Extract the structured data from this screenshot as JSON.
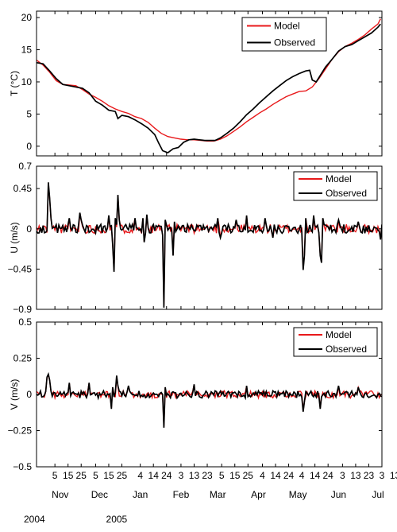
{
  "chart_data": [
    {
      "type": "line",
      "ylabel": "T (°C)",
      "ylim": [
        -1.5,
        21
      ],
      "yticks": [
        0,
        5,
        10,
        15,
        20
      ],
      "ytick_labels": [
        "0",
        "5",
        "10",
        "15",
        "20"
      ],
      "legend": {
        "position": "top-right",
        "entries": [
          "Model",
          "Observed"
        ]
      },
      "series": [
        {
          "name": "Model",
          "color": "#e8191b",
          "points": [
            [
              0,
              13.4
            ],
            [
              5,
              12.6
            ],
            [
              10,
              11.5
            ],
            [
              15,
              10.2
            ],
            [
              20,
              9.6
            ],
            [
              25,
              9.5
            ],
            [
              30,
              9.4
            ],
            [
              35,
              8.8
            ],
            [
              40,
              8.1
            ],
            [
              45,
              7.6
            ],
            [
              50,
              7.0
            ],
            [
              55,
              6.3
            ],
            [
              60,
              5.8
            ],
            [
              65,
              5.4
            ],
            [
              70,
              5.1
            ],
            [
              75,
              4.6
            ],
            [
              80,
              4.3
            ],
            [
              85,
              3.7
            ],
            [
              90,
              2.8
            ],
            [
              95,
              2.0
            ],
            [
              100,
              1.5
            ],
            [
              105,
              1.3
            ],
            [
              110,
              1.1
            ],
            [
              115,
              1.0
            ],
            [
              120,
              1.0
            ],
            [
              125,
              0.9
            ],
            [
              130,
              0.8
            ],
            [
              135,
              0.8
            ],
            [
              140,
              1.1
            ],
            [
              145,
              1.6
            ],
            [
              150,
              2.3
            ],
            [
              155,
              3.0
            ],
            [
              160,
              3.8
            ],
            [
              165,
              4.5
            ],
            [
              170,
              5.2
            ],
            [
              175,
              5.8
            ],
            [
              180,
              6.5
            ],
            [
              185,
              7.1
            ],
            [
              190,
              7.7
            ],
            [
              195,
              8.1
            ],
            [
              200,
              8.5
            ],
            [
              205,
              8.6
            ],
            [
              210,
              9.2
            ],
            [
              215,
              10.5
            ],
            [
              220,
              12.0
            ],
            [
              225,
              13.5
            ],
            [
              230,
              14.7
            ],
            [
              235,
              15.5
            ],
            [
              240,
              16.0
            ],
            [
              245,
              16.6
            ],
            [
              250,
              17.3
            ],
            [
              255,
              18.2
            ],
            [
              260,
              19.0
            ],
            [
              262,
              19.8
            ]
          ]
        },
        {
          "name": "Observed",
          "color": "#000000",
          "points": [
            [
              0,
              13.0
            ],
            [
              5,
              12.8
            ],
            [
              10,
              11.7
            ],
            [
              15,
              10.5
            ],
            [
              20,
              9.6
            ],
            [
              25,
              9.4
            ],
            [
              30,
              9.2
            ],
            [
              35,
              9.0
            ],
            [
              40,
              8.3
            ],
            [
              45,
              7.0
            ],
            [
              50,
              6.4
            ],
            [
              55,
              5.6
            ],
            [
              60,
              5.4
            ],
            [
              62,
              4.3
            ],
            [
              65,
              4.8
            ],
            [
              70,
              4.6
            ],
            [
              75,
              4.1
            ],
            [
              80,
              3.5
            ],
            [
              85,
              2.8
            ],
            [
              90,
              1.8
            ],
            [
              93,
              0.5
            ],
            [
              96,
              -0.7
            ],
            [
              100,
              -1.0
            ],
            [
              104,
              -0.4
            ],
            [
              108,
              -0.2
            ],
            [
              112,
              0.6
            ],
            [
              116,
              1.0
            ],
            [
              120,
              1.1
            ],
            [
              124,
              1.0
            ],
            [
              128,
              0.9
            ],
            [
              132,
              0.9
            ],
            [
              136,
              0.9
            ],
            [
              140,
              1.3
            ],
            [
              145,
              2.0
            ],
            [
              150,
              2.8
            ],
            [
              155,
              3.8
            ],
            [
              160,
              4.9
            ],
            [
              165,
              5.8
            ],
            [
              170,
              6.8
            ],
            [
              175,
              7.7
            ],
            [
              180,
              8.6
            ],
            [
              185,
              9.4
            ],
            [
              190,
              10.2
            ],
            [
              195,
              10.8
            ],
            [
              200,
              11.3
            ],
            [
              205,
              11.7
            ],
            [
              208,
              11.8
            ],
            [
              210,
              10.3
            ],
            [
              213,
              10.0
            ],
            [
              216,
              11.0
            ],
            [
              220,
              12.3
            ],
            [
              225,
              13.5
            ],
            [
              230,
              14.8
            ],
            [
              235,
              15.5
            ],
            [
              240,
              15.8
            ],
            [
              245,
              16.4
            ],
            [
              250,
              17.0
            ],
            [
              255,
              17.6
            ],
            [
              260,
              18.5
            ],
            [
              262,
              19.0
            ]
          ]
        }
      ]
    },
    {
      "type": "line",
      "ylabel": "U (m/s)",
      "ylim": [
        -0.9,
        0.7
      ],
      "yticks": [
        -0.9,
        -0.45,
        0,
        0.45,
        0.7
      ],
      "ytick_labels": [
        "−0.9",
        "−0.45",
        "0",
        "0.45",
        "0.7"
      ],
      "legend": {
        "position": "top-right",
        "entries": [
          "Model",
          "Observed"
        ]
      },
      "noise_amplitude": 0.05,
      "baseline_seed": 11,
      "spikes": [
        [
          9,
          0.52
        ],
        [
          10,
          0.35
        ],
        [
          11,
          0.12
        ],
        [
          25,
          0.12
        ],
        [
          33,
          0.18
        ],
        [
          34,
          0.1
        ],
        [
          55,
          0.15
        ],
        [
          58,
          -0.18
        ],
        [
          59,
          -0.48
        ],
        [
          60,
          0.12
        ],
        [
          62,
          0.38
        ],
        [
          63,
          0.1
        ],
        [
          75,
          0.12
        ],
        [
          81,
          0.12
        ],
        [
          82,
          -0.15
        ],
        [
          84,
          0.16
        ],
        [
          96,
          -0.07
        ],
        [
          97,
          -0.88
        ],
        [
          98,
          0.1
        ],
        [
          104,
          -0.3
        ],
        [
          105,
          0.08
        ],
        [
          138,
          0.12
        ],
        [
          140,
          -0.1
        ],
        [
          152,
          0.1
        ],
        [
          160,
          0.15
        ],
        [
          174,
          0.12
        ],
        [
          180,
          -0.1
        ],
        [
          203,
          -0.46
        ],
        [
          204,
          -0.3
        ],
        [
          205,
          0.12
        ],
        [
          211,
          0.15
        ],
        [
          216,
          -0.3
        ],
        [
          217,
          -0.38
        ],
        [
          218,
          0.12
        ],
        [
          230,
          0.1
        ],
        [
          245,
          0.08
        ],
        [
          262,
          -0.12
        ]
      ],
      "series": [
        {
          "name": "Model",
          "color": "#e8191b"
        },
        {
          "name": "Observed",
          "color": "#000000"
        }
      ]
    },
    {
      "type": "line",
      "ylabel": "V (m/s)",
      "ylim": [
        -0.5,
        0.5
      ],
      "yticks": [
        -0.5,
        -0.25,
        0,
        0.25,
        0.5
      ],
      "ytick_labels": [
        "−0.5",
        "−0.25",
        "0",
        "0.25",
        "0.5"
      ],
      "legend": {
        "position": "top-right",
        "entries": [
          "Model",
          "Observed"
        ]
      },
      "noise_amplitude": 0.025,
      "baseline_seed": 29,
      "spikes": [
        [
          8,
          0.12
        ],
        [
          9,
          0.14
        ],
        [
          10,
          0.1
        ],
        [
          25,
          0.08
        ],
        [
          40,
          0.08
        ],
        [
          57,
          -0.1
        ],
        [
          58,
          0.05
        ],
        [
          61,
          0.13
        ],
        [
          62,
          0.06
        ],
        [
          70,
          0.06
        ],
        [
          97,
          -0.23
        ],
        [
          98,
          0.05
        ],
        [
          120,
          0.07
        ],
        [
          160,
          0.06
        ],
        [
          203,
          -0.12
        ],
        [
          204,
          -0.05
        ],
        [
          216,
          -0.1
        ],
        [
          230,
          0.06
        ],
        [
          245,
          0.05
        ]
      ],
      "series": [
        {
          "name": "Model",
          "color": "#e8191b"
        },
        {
          "name": "Observed",
          "color": "#000000"
        }
      ]
    }
  ],
  "x_axis": {
    "xlim": [
      0,
      263
    ],
    "day_ticks": [
      {
        "x": 14,
        "label": "5"
      },
      {
        "x": 24,
        "label": "15"
      },
      {
        "x": 34,
        "label": "25"
      },
      {
        "x": 45,
        "label": "5"
      },
      {
        "x": 55,
        "label": "15"
      },
      {
        "x": 65,
        "label": "25"
      },
      {
        "x": 79,
        "label": "4"
      },
      {
        "x": 89,
        "label": "14"
      },
      {
        "x": 99,
        "label": "24"
      },
      {
        "x": 110,
        "label": "3"
      },
      {
        "x": 120,
        "label": "13"
      },
      {
        "x": 130,
        "label": "23"
      },
      {
        "x": 141,
        "label": "5"
      },
      {
        "x": 151,
        "label": "15"
      },
      {
        "x": 161,
        "label": "25"
      },
      {
        "x": 172,
        "label": "4"
      },
      {
        "x": 182,
        "label": "14"
      },
      {
        "x": 192,
        "label": "24"
      },
      {
        "x": 202,
        "label": "4"
      },
      {
        "x": 212,
        "label": "14"
      },
      {
        "x": 222,
        "label": "24"
      },
      {
        "x": 233,
        "label": "3"
      },
      {
        "x": 243,
        "label": "13"
      },
      {
        "x": 253,
        "label": "23"
      },
      {
        "x": 263,
        "label": "3"
      },
      {
        "x": 273,
        "label": "13"
      }
    ],
    "month_labels": [
      {
        "x": 18,
        "label": "Nov"
      },
      {
        "x": 48,
        "label": "Dec"
      },
      {
        "x": 79,
        "label": "Jan"
      },
      {
        "x": 110,
        "label": "Feb"
      },
      {
        "x": 138,
        "label": "Mar"
      },
      {
        "x": 169,
        "label": "Apr"
      },
      {
        "x": 199,
        "label": "May"
      },
      {
        "x": 230,
        "label": "Jun"
      },
      {
        "x": 260,
        "label": "Jul"
      }
    ],
    "year_labels": [
      {
        "x": 0,
        "label": "2004"
      },
      {
        "x": 61,
        "label": "2005"
      }
    ]
  }
}
